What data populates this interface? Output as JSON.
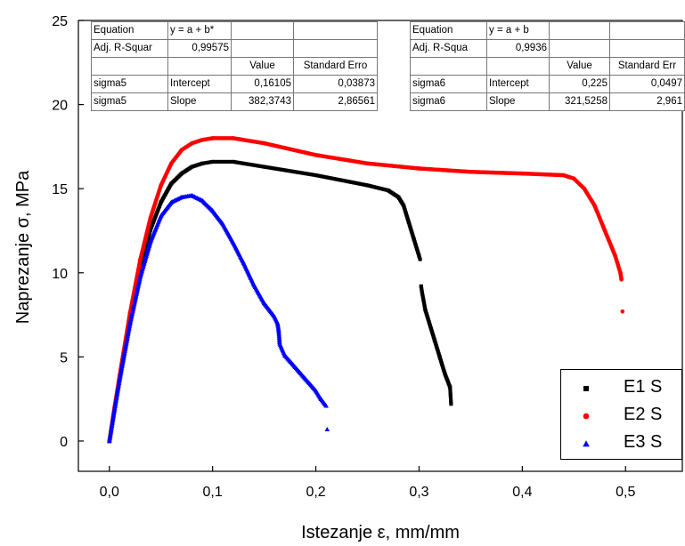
{
  "chart_data": {
    "type": "scatter",
    "title": "",
    "xlabel": "Istezanje ε, mm/mm",
    "ylabel": "Naprezanje σ, MPa",
    "xlim": [
      -0.03,
      0.555
    ],
    "ylim": [
      -1.8,
      25
    ],
    "x_ticks": [
      0.0,
      0.1,
      0.2,
      0.3,
      0.4,
      0.5
    ],
    "x_tick_labels": [
      "0,0",
      "0,1",
      "0,2",
      "0,3",
      "0,4",
      "0,5"
    ],
    "y_ticks": [
      0,
      5,
      10,
      15,
      20,
      25
    ],
    "y_tick_labels": [
      "0",
      "5",
      "10",
      "15",
      "20",
      "25"
    ],
    "legend_position": "bottom-right",
    "series": [
      {
        "name": "E1 S",
        "color": "#000000",
        "marker": "square",
        "points": [
          [
            0,
            0
          ],
          [
            0.005,
            1.9
          ],
          [
            0.01,
            3.8
          ],
          [
            0.02,
            7.3
          ],
          [
            0.03,
            10.3
          ],
          [
            0.04,
            12.6
          ],
          [
            0.05,
            14.2
          ],
          [
            0.06,
            15.3
          ],
          [
            0.07,
            15.9
          ],
          [
            0.08,
            16.3
          ],
          [
            0.09,
            16.5
          ],
          [
            0.1,
            16.6
          ],
          [
            0.12,
            16.6
          ],
          [
            0.15,
            16.3
          ],
          [
            0.2,
            15.8
          ],
          [
            0.25,
            15.2
          ],
          [
            0.27,
            14.9
          ],
          [
            0.28,
            14.5
          ],
          [
            0.285,
            14.0
          ],
          [
            0.29,
            13.0
          ],
          [
            0.295,
            12.0
          ],
          [
            0.3,
            11.0
          ],
          [
            0.301,
            10.8
          ],
          [
            0.302,
            9.2
          ],
          [
            0.303,
            8.8
          ],
          [
            0.306,
            7.8
          ],
          [
            0.31,
            7.0
          ],
          [
            0.315,
            6.0
          ],
          [
            0.32,
            5.0
          ],
          [
            0.325,
            4.0
          ],
          [
            0.33,
            3.2
          ],
          [
            0.331,
            2.2
          ]
        ]
      },
      {
        "name": "E2 S",
        "color": "#ff0000",
        "marker": "circle",
        "points": [
          [
            0,
            0
          ],
          [
            0.005,
            2.0
          ],
          [
            0.01,
            3.9
          ],
          [
            0.02,
            7.6
          ],
          [
            0.03,
            10.8
          ],
          [
            0.04,
            13.3
          ],
          [
            0.05,
            15.2
          ],
          [
            0.06,
            16.5
          ],
          [
            0.07,
            17.3
          ],
          [
            0.08,
            17.7
          ],
          [
            0.09,
            17.9
          ],
          [
            0.1,
            18.0
          ],
          [
            0.12,
            18.0
          ],
          [
            0.15,
            17.7
          ],
          [
            0.2,
            17.0
          ],
          [
            0.25,
            16.5
          ],
          [
            0.3,
            16.2
          ],
          [
            0.35,
            16.0
          ],
          [
            0.4,
            15.9
          ],
          [
            0.44,
            15.8
          ],
          [
            0.45,
            15.6
          ],
          [
            0.46,
            15.0
          ],
          [
            0.47,
            14.0
          ],
          [
            0.48,
            12.5
          ],
          [
            0.49,
            11.0
          ],
          [
            0.495,
            10.0
          ],
          [
            0.496,
            9.6
          ],
          [
            0.497,
            7.7
          ]
        ]
      },
      {
        "name": "E3 S",
        "color": "#0000ff",
        "marker": "triangle",
        "points": [
          [
            0,
            0
          ],
          [
            0.005,
            1.9
          ],
          [
            0.01,
            3.7
          ],
          [
            0.02,
            7.0
          ],
          [
            0.03,
            9.8
          ],
          [
            0.04,
            11.9
          ],
          [
            0.05,
            13.4
          ],
          [
            0.06,
            14.2
          ],
          [
            0.07,
            14.5
          ],
          [
            0.08,
            14.6
          ],
          [
            0.09,
            14.3
          ],
          [
            0.1,
            13.7
          ],
          [
            0.11,
            12.9
          ],
          [
            0.12,
            11.8
          ],
          [
            0.13,
            10.6
          ],
          [
            0.14,
            9.3
          ],
          [
            0.15,
            8.2
          ],
          [
            0.16,
            7.4
          ],
          [
            0.163,
            7.0
          ],
          [
            0.164,
            6.6
          ],
          [
            0.165,
            5.8
          ],
          [
            0.17,
            5.1
          ],
          [
            0.18,
            4.4
          ],
          [
            0.19,
            3.7
          ],
          [
            0.2,
            3.0
          ],
          [
            0.205,
            2.5
          ],
          [
            0.21,
            2.1
          ],
          [
            0.211,
            0.7
          ]
        ]
      }
    ],
    "fit_tables": [
      {
        "rows": [
          [
            "Equation",
            "y = a + b*",
            "",
            ""
          ],
          [
            "Adj. R-Squar",
            "0,99575",
            "",
            ""
          ],
          [
            "",
            "",
            "Value",
            "Standard Erro"
          ],
          [
            "sigma5",
            "Intercept",
            "0,16105",
            "0,03873"
          ],
          [
            "sigma5",
            "Slope",
            "382,3743",
            "2,86561"
          ]
        ]
      },
      {
        "rows": [
          [
            "Equation",
            "y = a + b",
            "",
            ""
          ],
          [
            "Adj. R-Squa",
            "0,9936",
            "",
            ""
          ],
          [
            "",
            "",
            "Value",
            "Standard Err"
          ],
          [
            "sigma6",
            "Intercept",
            "0,225",
            "0,0497"
          ],
          [
            "sigma6",
            "Slope",
            "321,5258",
            "2,961"
          ]
        ]
      }
    ]
  }
}
